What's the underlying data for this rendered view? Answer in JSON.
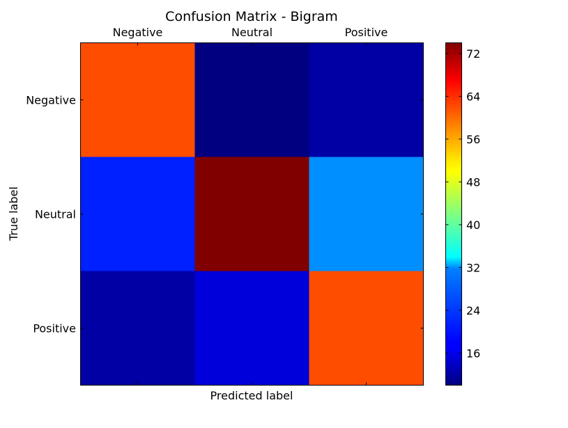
{
  "chart_data": {
    "type": "heatmap",
    "title": "Confusion Matrix - Bigram",
    "xlabel": "Predicted label",
    "ylabel": "True label",
    "x_categories": [
      "Negative",
      "Neutral",
      "Positive"
    ],
    "y_categories": [
      "Negative",
      "Neutral",
      "Positive"
    ],
    "values": [
      [
        63,
        10,
        12
      ],
      [
        20,
        74,
        27
      ],
      [
        12,
        15,
        63
      ]
    ],
    "colorbar": {
      "ticks": [
        16,
        24,
        32,
        40,
        48,
        56,
        64,
        72
      ],
      "range": [
        10,
        74
      ],
      "colormap": "jet"
    },
    "grid": false
  }
}
